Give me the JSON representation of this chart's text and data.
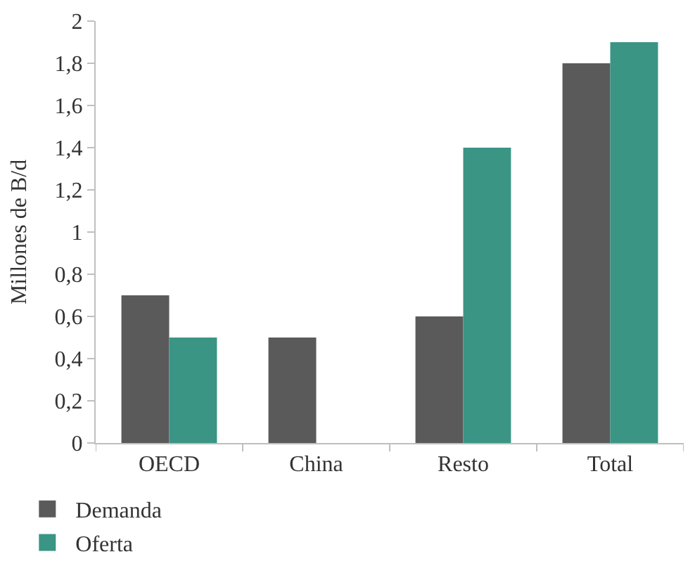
{
  "chart_data": {
    "type": "bar",
    "ylabel": "Millones de B/d",
    "categories": [
      "OECD",
      "China",
      "Resto",
      "Total"
    ],
    "series": [
      {
        "name": "Demanda",
        "color": "#5a5a5a",
        "values": [
          0.7,
          0.5,
          0.6,
          1.8
        ]
      },
      {
        "name": "Oferta",
        "color": "#3a9585",
        "values": [
          0.5,
          null,
          1.4,
          1.9
        ]
      }
    ],
    "ylim": [
      0,
      2
    ],
    "yticks": [
      0,
      {
        "value": 0.2,
        "label": "0,2"
      },
      {
        "value": 0.4,
        "label": "0,4"
      },
      {
        "value": 0.6,
        "label": "0,6"
      },
      {
        "value": 0.8,
        "label": "0,8"
      },
      1,
      {
        "value": 1.2,
        "label": "1,2"
      },
      {
        "value": 1.4,
        "label": "1,4"
      },
      {
        "value": 1.6,
        "label": "1,6"
      },
      {
        "value": 1.8,
        "label": "1,8"
      },
      2
    ],
    "legend": "bottom left"
  }
}
